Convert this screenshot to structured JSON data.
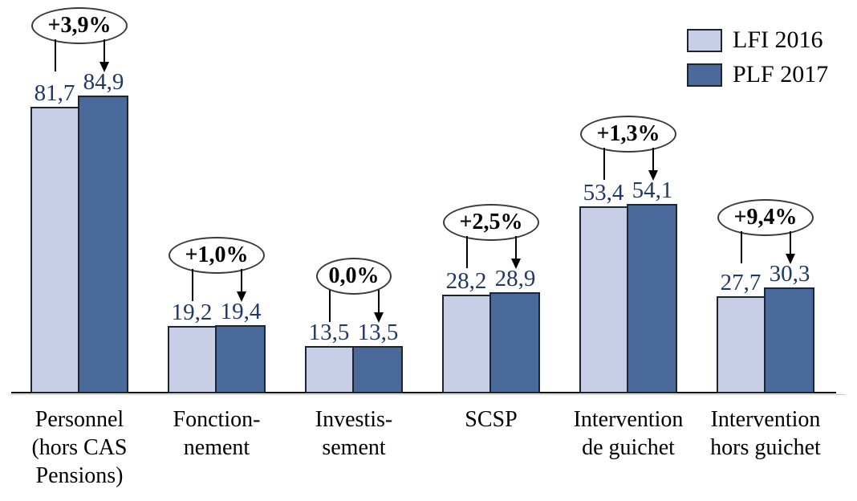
{
  "chart_data": {
    "type": "bar",
    "title": "",
    "xlabel": "",
    "ylabel": "",
    "ylim": [
      0,
      112
    ],
    "grid": false,
    "legend_position": "top-right",
    "categories": [
      [
        "Personnel",
        "(hors CAS",
        "Pensions)"
      ],
      [
        "Fonction-",
        "nement"
      ],
      [
        "Investis-",
        "sement"
      ],
      [
        "SCSP"
      ],
      [
        "Intervention",
        "de guichet"
      ],
      [
        "Intervention",
        "hors guichet"
      ]
    ],
    "series": [
      {
        "name": "LFI 2016",
        "color": "#C7CEE5",
        "values": [
          81.7,
          19.2,
          13.5,
          28.2,
          53.4,
          27.7
        ],
        "labels": [
          "81,7",
          "19,2",
          "13,5",
          "28,2",
          "53,4",
          "27,7"
        ]
      },
      {
        "name": "PLF 2017",
        "color": "#4A6A9B",
        "values": [
          84.9,
          19.4,
          13.5,
          28.9,
          54.1,
          30.3
        ],
        "labels": [
          "84,9",
          "19,4",
          "13,5",
          "28,9",
          "54,1",
          "30,3"
        ]
      }
    ],
    "annotations": [
      "+3,9%",
      "+1,0%",
      "0,0%",
      "+2,5%",
      "+1,3%",
      "+9,4%"
    ]
  },
  "legend": {
    "items": [
      {
        "label": "LFI 2016",
        "color": "#C7CEE5"
      },
      {
        "label": "PLF 2017",
        "color": "#4A6A9B"
      }
    ]
  },
  "colors": {
    "bar_border": "#1B2533",
    "value_text": "#1F3864",
    "axis": "#000000"
  }
}
